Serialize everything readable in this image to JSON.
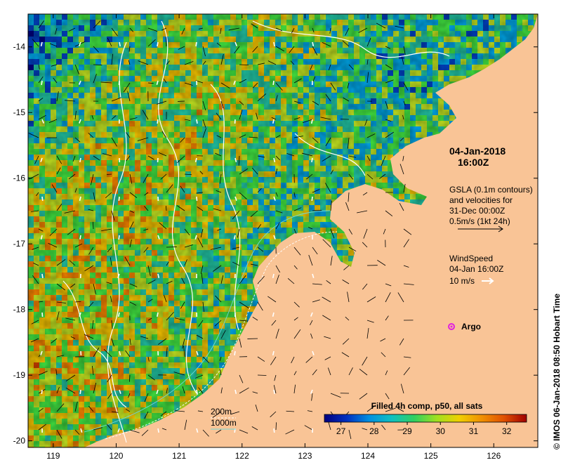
{
  "map": {
    "lon_ticks": [
      "119",
      "120",
      "121",
      "122",
      "123",
      "124",
      "125",
      "126"
    ],
    "lat_ticks": [
      "-14",
      "-15",
      "-16",
      "-17",
      "-18",
      "-19",
      "-20"
    ],
    "lon_range": [
      118.6,
      126.7
    ],
    "lat_range": [
      -20.1,
      -13.5
    ],
    "land_color": "#f9c496",
    "ocean_palette": [
      "#00007f",
      "#0040c0",
      "#00a0e0",
      "#20c0a0",
      "#40e040",
      "#c0e020",
      "#f0c000",
      "#f08000",
      "#d04000",
      "#900000"
    ]
  },
  "annotations": {
    "date": "04-Jan-2018",
    "time": "16:00Z",
    "gsla_line1": "GSLA (0.1m contours)",
    "gsla_line2": "and velocities for",
    "gsla_line3": "31-Dec 00:00Z",
    "gsla_line4": "0.5m/s (1kt 24h)",
    "wind_line1": "WindSpeed",
    "wind_line2": "04-Jan 16:00Z",
    "wind_line3": "10 m/s",
    "argo_label": "Argo"
  },
  "legend": {
    "isobath_200": "200m",
    "isobath_1000": "1000m",
    "colorbar_title": "Filled 4h comp, p50, all sats",
    "colorbar_ticks": [
      "27",
      "28",
      "29",
      "30",
      "31",
      "32"
    ],
    "colorbar_stops": [
      "#00007f",
      "#0030c0",
      "#0090e0",
      "#10c0c0",
      "#30d060",
      "#a0e020",
      "#f0d000",
      "#f09000",
      "#e05000",
      "#a00000"
    ]
  },
  "credit": "© IMOS 06-Jan-2018 08:50 Hobart Time"
}
